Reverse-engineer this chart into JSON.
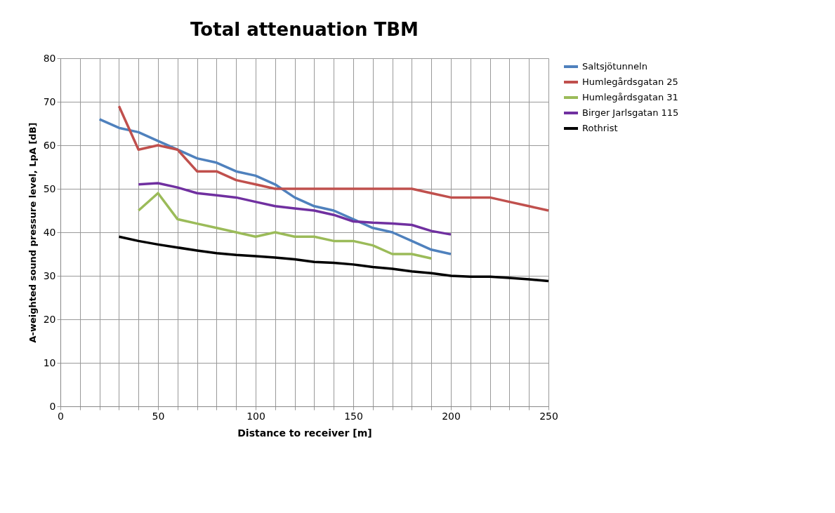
{
  "chart_data": {
    "type": "line",
    "title": "Total attenuation  TBM",
    "xlabel": "Distance to receiver [m]",
    "ylabel": "A-weighted sound  pressure  level,  LpA [dB]",
    "xlim": [
      0,
      250
    ],
    "ylim": [
      0,
      80
    ],
    "xticks": [
      0,
      {
        "value": 10,
        "label": null
      },
      {
        "value": 20,
        "label": null
      },
      {
        "value": 30,
        "label": null
      },
      {
        "value": 40,
        "label": null
      },
      50,
      {
        "value": 60,
        "label": null
      },
      {
        "value": 70,
        "label": null
      },
      {
        "value": 80,
        "label": null
      },
      {
        "value": 90,
        "label": null
      },
      100,
      {
        "value": 110,
        "label": null
      },
      {
        "value": 120,
        "label": null
      },
      {
        "value": 130,
        "label": null
      },
      {
        "value": 140,
        "label": null
      },
      150,
      {
        "value": 160,
        "label": null
      },
      {
        "value": 170,
        "label": null
      },
      {
        "value": 180,
        "label": null
      },
      {
        "value": 190,
        "label": null
      },
      200,
      {
        "value": 210,
        "label": null
      },
      {
        "value": 220,
        "label": null
      },
      {
        "value": 230,
        "label": null
      },
      {
        "value": 240,
        "label": null
      },
      250
    ],
    "yticks": [
      0,
      10,
      20,
      30,
      40,
      50,
      60,
      70,
      80
    ],
    "grid": true,
    "legend": "right",
    "marker": "none",
    "line_style": "solid",
    "series": [
      {
        "name": "Saltsjötunneln",
        "color": "#4f81bd",
        "x": [
          20,
          30,
          40,
          50,
          60,
          70,
          80,
          90,
          100,
          110,
          120,
          130,
          140,
          150,
          160,
          170,
          180,
          190,
          200
        ],
        "values": [
          66,
          64,
          63,
          61,
          59,
          57,
          56,
          54,
          53,
          51,
          48,
          46,
          45,
          43,
          41,
          40,
          38,
          36,
          35
        ]
      },
      {
        "name": "Humlegårdsgatan  25",
        "color": "#c0504d",
        "x": [
          30,
          40,
          50,
          60,
          70,
          80,
          90,
          100,
          110,
          120,
          130,
          140,
          150,
          160,
          170,
          180,
          190,
          200,
          210,
          220,
          230,
          240,
          250
        ],
        "values": [
          69,
          59,
          60,
          59,
          54,
          54,
          52,
          51,
          50,
          50,
          50,
          50,
          50,
          50,
          50,
          50,
          49,
          48,
          48,
          48,
          47,
          46,
          45
        ]
      },
      {
        "name": "Humlegårdsgatan  31",
        "color": "#9bbb59",
        "x": [
          40,
          50,
          60,
          70,
          80,
          90,
          100,
          110,
          120,
          130,
          140,
          150,
          160,
          170,
          180,
          190
        ],
        "values": [
          45,
          49,
          43,
          42,
          41,
          40,
          39,
          40,
          39,
          39,
          38,
          38,
          37,
          35,
          35,
          34
        ]
      },
      {
        "name": "Birger Jarlsgatan  115",
        "color": "#7030a0",
        "x": [
          40,
          50,
          60,
          70,
          80,
          90,
          100,
          110,
          120,
          130,
          140,
          150,
          160,
          170,
          180,
          190,
          200
        ],
        "values": [
          51,
          51.3,
          50.3,
          49,
          48.5,
          48,
          47,
          46,
          45.5,
          45,
          44,
          42.5,
          42.2,
          42,
          41.7,
          40.3,
          39.5
        ]
      },
      {
        "name": "Rothrist",
        "color": "#000000",
        "x": [
          30,
          40,
          50,
          60,
          70,
          80,
          90,
          100,
          110,
          120,
          130,
          140,
          150,
          160,
          170,
          180,
          190,
          200,
          210,
          220,
          230,
          240,
          250
        ],
        "values": [
          39,
          38,
          37.2,
          36.5,
          35.8,
          35.2,
          34.8,
          34.5,
          34.2,
          33.8,
          33.2,
          33,
          32.6,
          32,
          31.6,
          31,
          30.6,
          30,
          29.8,
          29.8,
          29.5,
          29.2,
          28.8
        ]
      }
    ]
  }
}
